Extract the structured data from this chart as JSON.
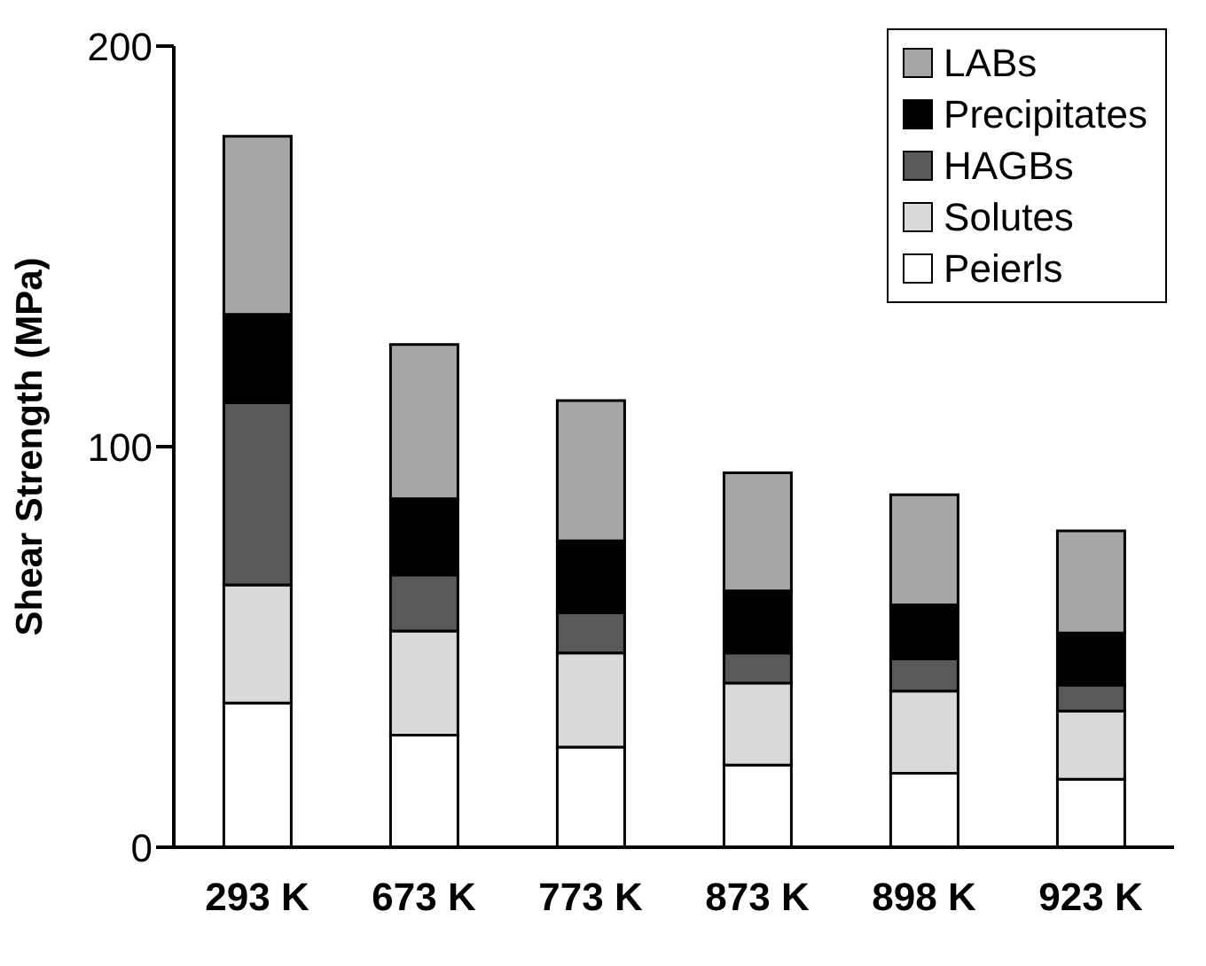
{
  "chart_data": {
    "type": "bar",
    "stacked": true,
    "ylabel": "Shear Strength (MPa)",
    "categories": [
      "293 K",
      "673 K",
      "773 K",
      "873 K",
      "898 K",
      "923 K"
    ],
    "series": [
      {
        "name": "Peierls",
        "color": "#ffffff",
        "values": [
          36,
          28,
          25,
          20.5,
          18.5,
          17
        ]
      },
      {
        "name": "Solutes",
        "color": "#d9d9d9",
        "values": [
          29.5,
          26,
          23.5,
          20.5,
          20.5,
          17
        ]
      },
      {
        "name": "HAGBs",
        "color": "#595959",
        "values": [
          45.5,
          14,
          10,
          7.5,
          8,
          6.5
        ]
      },
      {
        "name": "Precipitates",
        "color": "#000000",
        "values": [
          22,
          19,
          18,
          15.5,
          13.5,
          13
        ]
      },
      {
        "name": "LABs",
        "color": "#a6a6a6",
        "values": [
          44.5,
          38.5,
          35,
          29.5,
          27.5,
          25.5
        ]
      }
    ],
    "ylim": [
      0,
      200
    ],
    "yticks": [
      0,
      100,
      200
    ],
    "grid": false,
    "legend": "top right"
  }
}
